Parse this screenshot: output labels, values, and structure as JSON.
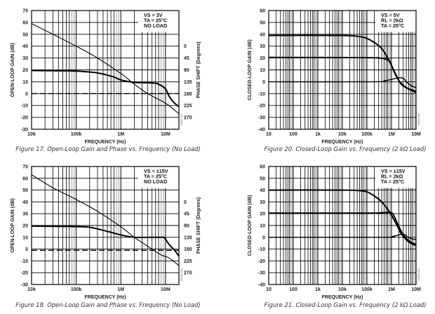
{
  "chart_data": [
    {
      "id": "fig17",
      "type": "line",
      "title": "",
      "caption": "Figure 17. Open-Loop Gain and Phase vs. Frequency (No Load)",
      "xlabel": "FREQUENCY (Hz)",
      "ylabel": "OPEN-LOOP GAIN (dB)",
      "y2label": "PHASE SHIFT (Degrees)",
      "xscale": "log",
      "xlim": [
        10000,
        20000000
      ],
      "ylim": [
        -30,
        70
      ],
      "xticks": [
        {
          "value": 10000,
          "label": "10k"
        },
        {
          "value": 100000,
          "label": "100k"
        },
        {
          "value": 1000000,
          "label": "1M"
        },
        {
          "value": 10000000,
          "label": "10M"
        }
      ],
      "yticks": [
        70,
        60,
        50,
        40,
        30,
        20,
        10,
        0,
        -10,
        -20,
        -30
      ],
      "y2ticks": [
        {
          "gain_equiv": 40,
          "label": "0"
        },
        {
          "gain_equiv": 30,
          "label": "45"
        },
        {
          "gain_equiv": 20,
          "label": "90"
        },
        {
          "gain_equiv": 10,
          "label": "135"
        },
        {
          "gain_equiv": 0,
          "label": "180"
        },
        {
          "gain_equiv": -10,
          "label": "225"
        },
        {
          "gain_equiv": -20,
          "label": "270"
        }
      ],
      "legend": [
        "VS = 3V",
        "TA = 25°C",
        "NO LOAD"
      ],
      "code": "03250-017",
      "grid": true,
      "dashed_reference": 0,
      "series": [
        {
          "name": "Open-Loop Gain",
          "weight": "thin",
          "x": [
            10000,
            30000,
            100000,
            300000,
            1000000,
            2000000,
            4000000,
            8000000,
            12000000,
            20000000
          ],
          "y": [
            59,
            50,
            40,
            30,
            17,
            8,
            0,
            -6,
            -10,
            -17
          ]
        },
        {
          "name": "Phase",
          "weight": "thick",
          "x": [
            10000,
            50000,
            100000,
            300000,
            700000,
            1000000,
            2000000,
            5000000,
            7000000,
            10000000,
            12000000,
            15000000,
            20000000
          ],
          "y": [
            19.5,
            19.2,
            19,
            17.5,
            14,
            11.5,
            9.5,
            9,
            8,
            4,
            -2,
            -7,
            -11
          ]
        }
      ]
    },
    {
      "id": "fig20",
      "type": "line",
      "title": "",
      "caption": "Figure 20. Closed-Loop Gain vs. Frequency (2 kΩ Load)",
      "xlabel": "FREQUENCY (Hz)",
      "ylabel": "CLOSED-LOOP GAIN (dB)",
      "xscale": "log",
      "xlim": [
        10,
        10000000
      ],
      "ylim": [
        -40,
        60
      ],
      "xticks": [
        {
          "value": 10,
          "label": "10"
        },
        {
          "value": 100,
          "label": "100"
        },
        {
          "value": 1000,
          "label": "1k"
        },
        {
          "value": 10000,
          "label": "10k"
        },
        {
          "value": 100000,
          "label": "100k"
        },
        {
          "value": 1000000,
          "label": "1M"
        },
        {
          "value": 10000000,
          "label": "10M"
        }
      ],
      "yticks": [
        60,
        50,
        40,
        30,
        20,
        10,
        0,
        -10,
        -20,
        -30,
        -40
      ],
      "legend": [
        "VS = 5V",
        "RL = 2kΩ",
        "TA = 25°C"
      ],
      "code": "03250-020",
      "grid": true,
      "series": [
        {
          "name": "Gain 40 dB",
          "weight": "thick",
          "x": [
            10,
            10000,
            50000,
            100000,
            200000,
            400000,
            800000,
            1500000,
            2500000,
            5000000,
            10000000
          ],
          "y": [
            39,
            39,
            38,
            36.5,
            33,
            28,
            18,
            6,
            -2,
            -6,
            -9
          ]
        },
        {
          "name": "Gain 20 dB",
          "weight": "thick",
          "x": [
            10,
            100000,
            300000,
            600000,
            900000,
            1300000,
            2000000,
            3000000,
            5000000,
            10000000
          ],
          "y": [
            20.5,
            20.3,
            20,
            19,
            16,
            8,
            1,
            -3,
            -6,
            -8
          ]
        },
        {
          "name": "Gain 0 dB",
          "weight": "medium",
          "x": [
            10,
            200000,
            500000,
            1000000,
            2000000,
            3000000,
            4000000,
            6000000,
            10000000
          ],
          "y": [
            0,
            0,
            0.8,
            2,
            3.3,
            3,
            0,
            -3,
            -5
          ]
        }
      ]
    },
    {
      "id": "fig18",
      "type": "line",
      "title": "",
      "caption": "Figure 18. Open-Loop Gain and Phase vs. Frequency (No Load)",
      "xlabel": "FREQUENCY (Hz)",
      "ylabel": "OPEN-LOOP GAIN (dB)",
      "y2label": "PHASE SHIFT (Degrees)",
      "xscale": "log",
      "xlim": [
        10000,
        20000000
      ],
      "ylim": [
        -30,
        70
      ],
      "xticks": [
        {
          "value": 10000,
          "label": "10k"
        },
        {
          "value": 100000,
          "label": "100k"
        },
        {
          "value": 1000000,
          "label": "1M"
        },
        {
          "value": 10000000,
          "label": "10M"
        }
      ],
      "yticks": [
        70,
        60,
        50,
        40,
        30,
        20,
        10,
        0,
        -10,
        -20,
        -30
      ],
      "y2ticks": [
        {
          "gain_equiv": 40,
          "label": "0"
        },
        {
          "gain_equiv": 30,
          "label": "45"
        },
        {
          "gain_equiv": 20,
          "label": "90"
        },
        {
          "gain_equiv": 10,
          "label": "135"
        },
        {
          "gain_equiv": 0,
          "label": "180"
        },
        {
          "gain_equiv": -10,
          "label": "225"
        },
        {
          "gain_equiv": -20,
          "label": "270"
        }
      ],
      "legend": [
        "VS = ±15V",
        "TA = 25°C",
        "NO LOAD"
      ],
      "code": "03250-018",
      "grid": true,
      "dashed_reference": -1,
      "series": [
        {
          "name": "Open-Loop Gain",
          "weight": "thin",
          "x": [
            10000,
            30000,
            100000,
            300000,
            1000000,
            2000000,
            5000000,
            8000000,
            12000000,
            20000000
          ],
          "y": [
            63,
            52,
            42,
            32,
            19,
            10,
            0,
            -5,
            -7.5,
            -14
          ]
        },
        {
          "name": "Phase",
          "weight": "thick",
          "x": [
            10000,
            50000,
            100000,
            200000,
            500000,
            1000000,
            2000000,
            5000000,
            8000000,
            9500000,
            12000000,
            16000000,
            20000000
          ],
          "y": [
            19.5,
            19.2,
            19,
            18.5,
            15,
            12,
            10,
            10,
            10,
            9.5,
            4,
            -1,
            -6
          ]
        }
      ]
    },
    {
      "id": "fig21",
      "type": "line",
      "title": "",
      "caption": "Figure 21. Closed-Loop Gain vs. Frequency (2 kΩ Load)",
      "xlabel": "FREQUENCY (Hz)",
      "ylabel": "CLOSED-LOOP GAIN (dB)",
      "xscale": "log",
      "xlim": [
        10,
        10000000
      ],
      "ylim": [
        -40,
        60
      ],
      "xticks": [
        {
          "value": 10,
          "label": "10"
        },
        {
          "value": 100,
          "label": "100"
        },
        {
          "value": 1000,
          "label": "1k"
        },
        {
          "value": 10000,
          "label": "10k"
        },
        {
          "value": 100000,
          "label": "100k"
        },
        {
          "value": 1000000,
          "label": "1M"
        },
        {
          "value": 10000000,
          "label": "10M"
        }
      ],
      "yticks": [
        60,
        50,
        40,
        30,
        20,
        10,
        0,
        -10,
        -20,
        -30,
        -40
      ],
      "legend": [
        "VS = ±15V",
        "RL = 2kΩ",
        "TA = 25°C"
      ],
      "code": "03250-021",
      "grid": true,
      "series": [
        {
          "name": "Gain 40 dB",
          "weight": "thick",
          "x": [
            10,
            10000,
            50000,
            100000,
            200000,
            400000,
            800000,
            1500000,
            2500000,
            4000000,
            6000000,
            10000000
          ],
          "y": [
            40,
            40,
            39.5,
            38.5,
            35,
            30,
            22,
            12,
            3,
            -2,
            -5,
            -7
          ]
        },
        {
          "name": "Gain 20 dB",
          "weight": "thick",
          "x": [
            10,
            100000,
            500000,
            900000,
            1200000,
            2000000,
            3000000,
            4000000,
            6000000,
            10000000
          ],
          "y": [
            20.5,
            20.5,
            21,
            21,
            19,
            9,
            2,
            -1,
            -4,
            -6
          ]
        },
        {
          "name": "Gain 0 dB",
          "weight": "medium",
          "x": [
            10,
            500000,
            1000000,
            2000000,
            3000000,
            4000000,
            6000000,
            10000000
          ],
          "y": [
            0,
            0,
            0.5,
            2,
            3,
            1,
            -1,
            -2
          ]
        }
      ]
    }
  ]
}
